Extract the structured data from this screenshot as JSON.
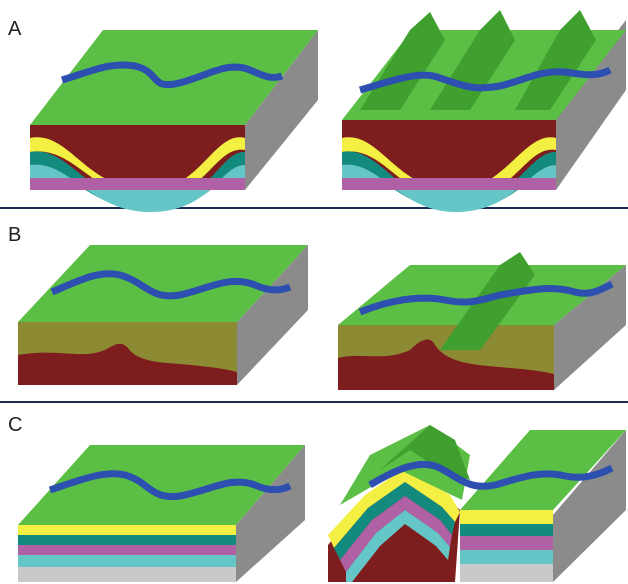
{
  "panels": [
    {
      "label": "A"
    },
    {
      "label": "B"
    },
    {
      "label": "C"
    }
  ],
  "colors": {
    "surface": "#5cbf45",
    "surface_dark": "#3f9f2f",
    "river": "#2c4fb0",
    "side_gray": "#8b8b8b",
    "rock_maroon": "#7e1d1d",
    "rock_olive": "#8c8a33",
    "rock_teal": "#138a7e",
    "rock_cyan": "#65c6c8",
    "rock_magenta": "#b060a5",
    "rock_yellow": "#f3f043",
    "rock_lightgray": "#c9c9c9",
    "divider": "#1f2a52"
  }
}
